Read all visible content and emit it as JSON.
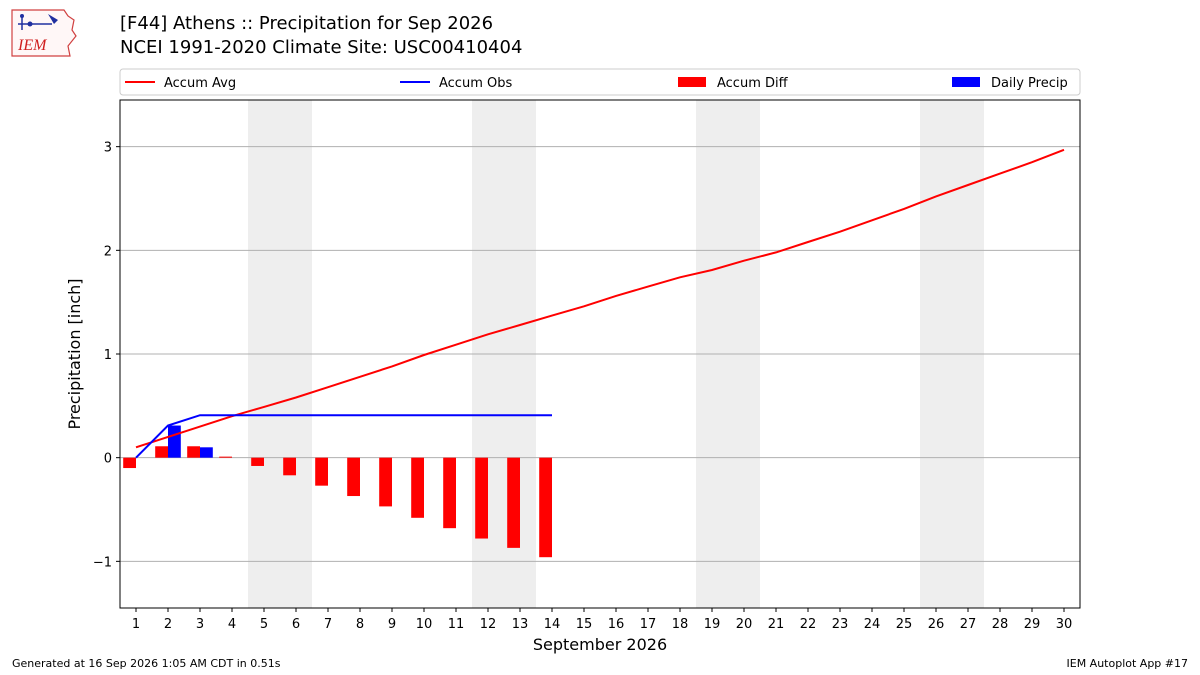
{
  "header": {
    "title_line1": "[F44] Athens :: Precipitation for Sep 2026",
    "title_line2": "NCEI 1991-2020 Climate Site: USC00410404",
    "logo_text": "IEM"
  },
  "footer": {
    "generated": "Generated at 16 Sep 2026 1:05 AM CDT in 0.51s",
    "app": "IEM Autoplot App #17"
  },
  "colors": {
    "avg": "#ff0000",
    "obs": "#0000ff",
    "diff": "#ff0000",
    "daily": "#0000ff",
    "weekend": "#eeeeee",
    "grid": "#b0b0b0"
  },
  "chart_data": {
    "type": "bar",
    "xlabel": "September 2026",
    "ylabel": "Precipitation [inch]",
    "xlim": [
      0.5,
      30.5
    ],
    "ylim": [
      -1.45,
      3.45
    ],
    "yticks": [
      -1,
      0,
      1,
      2,
      3
    ],
    "ytick_labels": [
      "−1",
      "0",
      "1",
      "2",
      "3"
    ],
    "xticks": [
      1,
      2,
      3,
      4,
      5,
      6,
      7,
      8,
      9,
      10,
      11,
      12,
      13,
      14,
      15,
      16,
      17,
      18,
      19,
      20,
      21,
      22,
      23,
      24,
      25,
      26,
      27,
      28,
      29,
      30
    ],
    "grid": "horizontal",
    "legend_placement": "top, above plot",
    "weekend_days": [
      5,
      6,
      12,
      13,
      19,
      20,
      26,
      27
    ],
    "legend": [
      "Accum Avg",
      "Accum Obs",
      "Accum Diff",
      "Daily Precip"
    ],
    "series": [
      {
        "name": "Accum Avg",
        "type": "line",
        "x": [
          1,
          2,
          3,
          4,
          5,
          6,
          7,
          8,
          9,
          10,
          11,
          12,
          13,
          14,
          15,
          16,
          17,
          18,
          19,
          20,
          21,
          22,
          23,
          24,
          25,
          26,
          27,
          28,
          29,
          30
        ],
        "values": [
          0.1,
          0.2,
          0.3,
          0.4,
          0.49,
          0.58,
          0.68,
          0.78,
          0.88,
          0.99,
          1.09,
          1.19,
          1.28,
          1.37,
          1.46,
          1.56,
          1.65,
          1.74,
          1.81,
          1.9,
          1.98,
          2.08,
          2.18,
          2.29,
          2.4,
          2.52,
          2.63,
          2.74,
          2.85,
          2.97
        ]
      },
      {
        "name": "Accum Obs",
        "type": "line",
        "x": [
          1,
          2,
          3,
          4,
          5,
          6,
          7,
          8,
          9,
          10,
          11,
          12,
          13,
          14
        ],
        "values": [
          0.0,
          0.31,
          0.41,
          0.41,
          0.41,
          0.41,
          0.41,
          0.41,
          0.41,
          0.41,
          0.41,
          0.41,
          0.41,
          0.41
        ]
      },
      {
        "name": "Accum Diff",
        "type": "bar",
        "x": [
          1,
          2,
          3,
          4,
          5,
          6,
          7,
          8,
          9,
          10,
          11,
          12,
          13,
          14
        ],
        "values": [
          -0.1,
          0.11,
          0.11,
          0.01,
          -0.08,
          -0.17,
          -0.27,
          -0.37,
          -0.47,
          -0.58,
          -0.68,
          -0.78,
          -0.87,
          -0.96
        ]
      },
      {
        "name": "Daily Precip",
        "type": "bar",
        "x": [
          2,
          3
        ],
        "values": [
          0.31,
          0.1
        ]
      }
    ]
  }
}
